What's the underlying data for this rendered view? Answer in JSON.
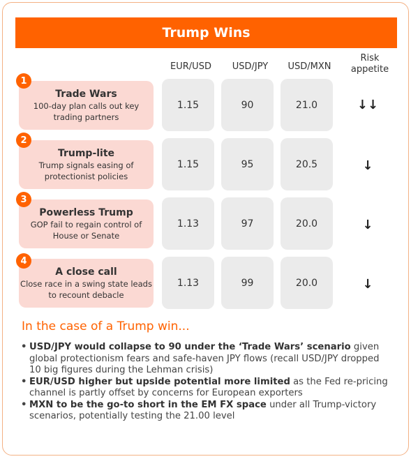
{
  "title": "Trump Wins",
  "columns": [
    "EUR/USD",
    "USD/JPY",
    "USD/MXN",
    "Risk appetite"
  ],
  "scenarios": [
    {
      "num": "1",
      "title": "Trade Wars",
      "desc": "100-day plan calls out key trading partners",
      "eurusd": "1.15",
      "usdjpy": "90",
      "usdmxn": "21.0",
      "risk": "↓↓"
    },
    {
      "num": "2",
      "title": "Trump-lite",
      "desc": "Trump signals easing of protectionist policies",
      "eurusd": "1.15",
      "usdjpy": "95",
      "usdmxn": "20.5",
      "risk": "↓"
    },
    {
      "num": "3",
      "title": "Powerless Trump",
      "desc": "GOP fail to regain control of House or Senate",
      "eurusd": "1.13",
      "usdjpy": "97",
      "usdmxn": "20.0",
      "risk": "↓"
    },
    {
      "num": "4",
      "title": "A close call",
      "desc": "Close race in a swing state leads to recount debacle",
      "eurusd": "1.13",
      "usdjpy": "99",
      "usdmxn": "20.0",
      "risk": "↓"
    }
  ],
  "subtitle": "In the case of a Trump win...",
  "bullets": [
    {
      "bold": "USD/JPY would collapse to 90 under the ‘Trade Wars’ scenario",
      "rest": " given global protectionism fears and safe-haven JPY flows (recall USD/JPY dropped 10 big figures during the Lehman crisis)"
    },
    {
      "bold": "EUR/USD higher but upside potential more limited",
      "rest": " as the Fed re-pricing channel is partly offset by concerns for European exporters"
    },
    {
      "bold": "MXN to be the go-to short in the EM FX space",
      "rest": " under all Trump-victory scenarios, potentially testing the 21.00 level"
    }
  ]
}
